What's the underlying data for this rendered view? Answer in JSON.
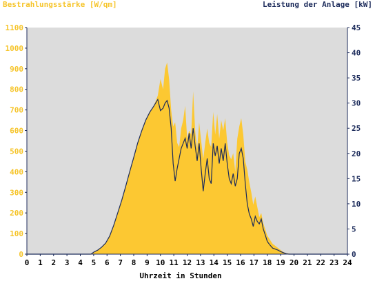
{
  "chart_data": {
    "type": "area",
    "left_axis_label": "Bestrahlungsstärke [W/qm]",
    "right_axis_label": "Leistung der Anlage [kW]",
    "xlabel": "Uhrzeit in Stunden",
    "xlim": [
      0,
      24
    ],
    "x_ticks": [
      "0",
      "1",
      "2",
      "3",
      "4",
      "5",
      "6",
      "7",
      "8",
      "9",
      "10",
      "11",
      "12",
      "13",
      "14",
      "15",
      "16",
      "17",
      "18",
      "19",
      "20",
      "21",
      "22",
      "23",
      "24"
    ],
    "ylim_left": [
      0,
      1100
    ],
    "y_ticks_left": [
      "0",
      "100",
      "200",
      "300",
      "400",
      "500",
      "600",
      "700",
      "800",
      "900",
      "1000",
      "1100"
    ],
    "ylim_right": [
      0,
      45
    ],
    "y_ticks_right": [
      "0",
      "5",
      "10",
      "15",
      "20",
      "25",
      "30",
      "35",
      "40",
      "45"
    ],
    "grid": false,
    "colors": {
      "plot_background": "#dcdcdc",
      "irradiance_fill": "#fcc832",
      "power_line": "#1b2a5a",
      "left_axis_text": "#f6c52c",
      "right_axis_text": "#1b2a5a",
      "axis_line": "#1b2a5a"
    },
    "series": [
      {
        "name": "Bestrahlungsstärke [W/qm]",
        "axis": "left",
        "style": "area",
        "x": [
          0,
          4.8,
          5.0,
          5.3,
          5.6,
          5.9,
          6.2,
          6.5,
          6.8,
          7.1,
          7.4,
          7.7,
          8.0,
          8.3,
          8.6,
          8.9,
          9.2,
          9.5,
          9.8,
          10.0,
          10.2,
          10.35,
          10.5,
          10.65,
          10.8,
          10.95,
          11.1,
          11.25,
          11.4,
          11.55,
          11.7,
          11.85,
          12.0,
          12.15,
          12.3,
          12.45,
          12.6,
          12.75,
          12.9,
          13.05,
          13.2,
          13.35,
          13.5,
          13.65,
          13.8,
          13.95,
          14.1,
          14.25,
          14.4,
          14.55,
          14.7,
          14.85,
          15.0,
          15.15,
          15.3,
          15.45,
          15.6,
          15.75,
          15.9,
          16.05,
          16.2,
          16.35,
          16.5,
          16.65,
          16.8,
          16.95,
          17.1,
          17.25,
          17.4,
          17.55,
          17.7,
          17.85,
          18.0,
          18.2,
          18.4,
          18.6,
          18.8,
          19.0,
          19.2,
          19.4,
          19.6,
          19.8,
          20.0,
          20.2,
          20.4,
          24
        ],
        "values": [
          0,
          0,
          10,
          20,
          35,
          55,
          90,
          140,
          200,
          260,
          330,
          400,
          470,
          540,
          600,
          650,
          690,
          720,
          770,
          850,
          800,
          900,
          930,
          850,
          700,
          620,
          640,
          540,
          520,
          610,
          650,
          720,
          560,
          600,
          580,
          790,
          600,
          510,
          640,
          550,
          460,
          540,
          610,
          540,
          520,
          690,
          580,
          680,
          560,
          650,
          600,
          660,
          540,
          480,
          460,
          490,
          400,
          560,
          620,
          660,
          580,
          450,
          410,
          350,
          300,
          240,
          280,
          230,
          180,
          200,
          150,
          120,
          90,
          70,
          50,
          40,
          30,
          20,
          10,
          5,
          3,
          1,
          0,
          0,
          0,
          0
        ]
      },
      {
        "name": "Leistung der Anlage [kW]",
        "axis": "right",
        "style": "line",
        "x": [
          0,
          4.8,
          5.0,
          5.3,
          5.6,
          5.9,
          6.2,
          6.5,
          6.8,
          7.1,
          7.4,
          7.7,
          8.0,
          8.3,
          8.6,
          8.9,
          9.2,
          9.5,
          9.8,
          10.0,
          10.2,
          10.35,
          10.5,
          10.65,
          10.8,
          10.95,
          11.1,
          11.25,
          11.4,
          11.55,
          11.7,
          11.85,
          12.0,
          12.15,
          12.3,
          12.45,
          12.6,
          12.75,
          12.9,
          13.05,
          13.2,
          13.35,
          13.5,
          13.65,
          13.8,
          13.95,
          14.1,
          14.25,
          14.4,
          14.55,
          14.7,
          14.85,
          15.0,
          15.15,
          15.3,
          15.45,
          15.6,
          15.75,
          15.9,
          16.05,
          16.2,
          16.35,
          16.5,
          16.65,
          16.8,
          16.95,
          17.1,
          17.25,
          17.4,
          17.55,
          17.7,
          17.85,
          18.0,
          18.2,
          18.4,
          18.6,
          18.8,
          19.0,
          19.2,
          19.4,
          19.6,
          19.8,
          20.0,
          20.2,
          20.4,
          24
        ],
        "values": [
          0,
          0,
          0.4,
          0.8,
          1.4,
          2.2,
          3.6,
          5.7,
          8.2,
          10.7,
          13.5,
          16.4,
          19.2,
          22.1,
          24.5,
          26.6,
          28.2,
          29.4,
          30.7,
          28.5,
          29.0,
          30.0,
          30.5,
          29.0,
          25.0,
          18.0,
          14.5,
          17.0,
          19.0,
          21.0,
          22.0,
          23.0,
          21.0,
          24.0,
          21.0,
          25.0,
          21.5,
          18.5,
          22.0,
          17.0,
          12.5,
          16.0,
          19.0,
          15.0,
          14.0,
          22.0,
          19.5,
          21.5,
          18.0,
          21.0,
          18.5,
          22.0,
          18.0,
          15.0,
          14.0,
          16.0,
          13.5,
          15.0,
          20.0,
          21.0,
          19.0,
          14.0,
          10.0,
          8.0,
          7.0,
          5.5,
          7.5,
          6.5,
          6.0,
          7.0,
          5.0,
          3.8,
          2.5,
          1.8,
          1.2,
          1.0,
          0.8,
          0.5,
          0.3,
          0.1,
          0,
          0,
          0,
          0,
          0,
          0
        ]
      }
    ]
  }
}
